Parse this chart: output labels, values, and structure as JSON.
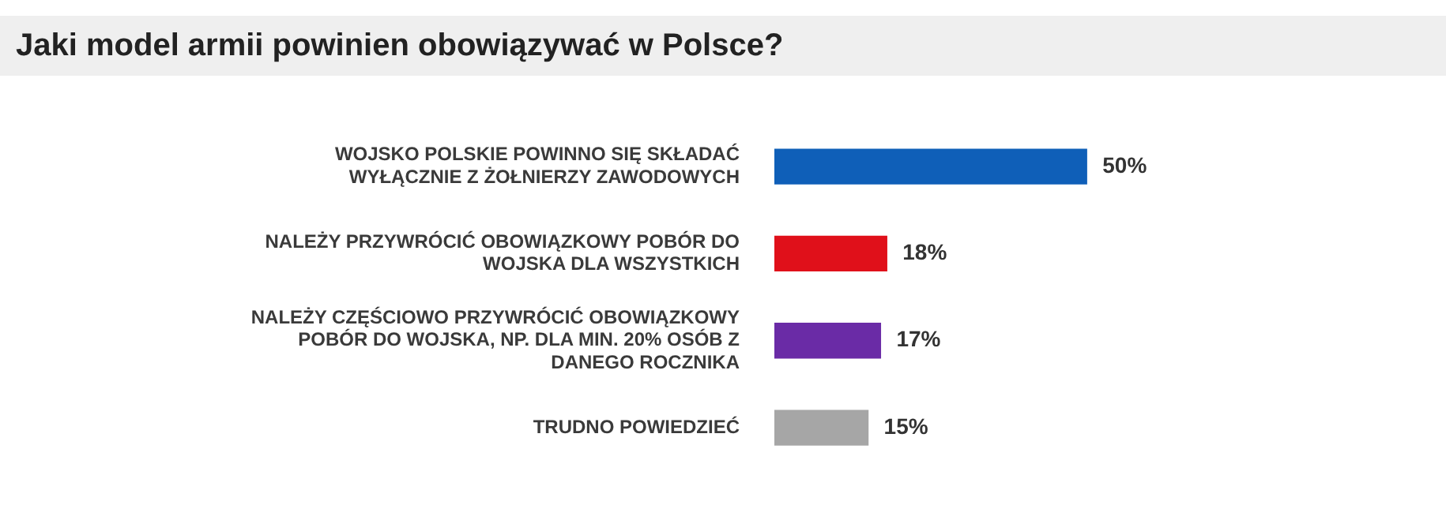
{
  "chart_data": {
    "type": "bar",
    "orientation": "horizontal",
    "title": "Jaki model armii powinien obowiązywać w Polsce?",
    "categories": [
      "WOJSKO POLSKIE POWINNO SIĘ SKŁADAĆ WYŁĄCZNIE Z ŻOŁNIERZY ZAWODOWYCH",
      "NALEŻY PRZYWRÓCIĆ OBOWIĄZKOWY POBÓR DO WOJSKA DLA WSZYSTKICH",
      "NALEŻY CZĘŚCIOWO PRZYWRÓCIĆ OBOWIĄZKOWY POBÓR DO WOJSKA, NP. DLA MIN. 20% OSÓB Z DANEGO ROCZNIKA",
      "TRUDNO POWIEDZIEĆ"
    ],
    "values": [
      50,
      18,
      17,
      15
    ],
    "colors": [
      "#0f5fb8",
      "#e0101a",
      "#6a2ba6",
      "#a6a6a6"
    ],
    "value_labels": [
      "50%",
      "18%",
      "17%",
      "15%"
    ],
    "legend": false
  }
}
